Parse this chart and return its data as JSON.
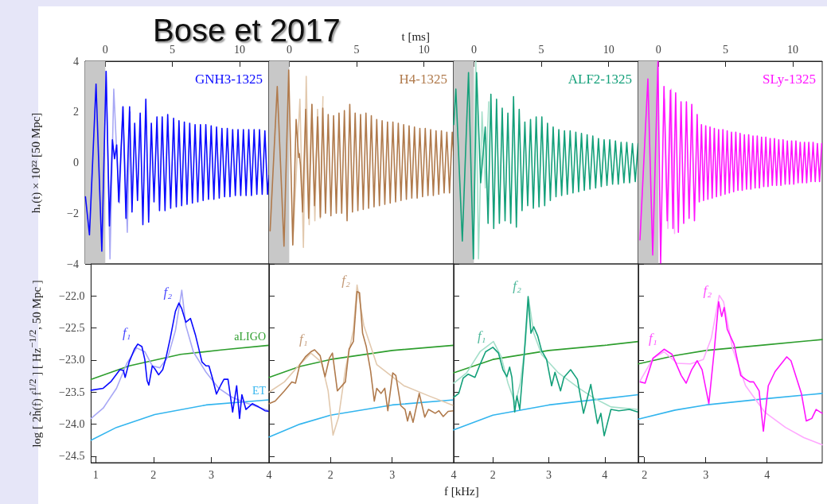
{
  "chart_data": [
    {
      "type": "line",
      "title": "Bose et 2017",
      "ylabel": "h₊(t) × 10²² [50 Mpc]",
      "marker": "none",
      "xlim": [
        -1.5,
        12.2
      ],
      "xticks": [
        0,
        5,
        10
      ],
      "ylim": [
        -4,
        4
      ],
      "yticks": [
        {
          "value": -4,
          "label": "−4"
        },
        {
          "value": -2,
          "label": "−2"
        },
        0,
        2,
        4
      ],
      "bands": [
        {
          "axis": "x",
          "from": -1.5,
          "to": 0,
          "color": "#c8c8c8"
        }
      ],
      "series": [
        {
          "color": "#a8a8f5",
          "x": [
            0.06,
            0.35,
            0.63,
            0.85,
            1.05,
            1.3,
            1.64,
            1.85
          ],
          "values": [
            3.6,
            -3.8,
            2.9,
            0.4,
            -1.6,
            2.2,
            -2.75,
            2.0
          ]
        },
        {
          "name": "GNH3-1325",
          "color": "#0a0aff",
          "x": [
            -1.48,
            -1.18,
            -0.69,
            -0.26,
            0.06,
            0.31,
            0.53,
            0.69,
            0.85,
            1.0,
            1.32,
            1.54,
            1.81,
            1.99,
            2.19,
            2.4,
            2.6,
            2.8,
            3.02,
            3.23,
            3.43,
            3.63,
            3.85,
            4.04,
            4.24,
            4.45,
            4.65,
            4.87,
            5.09,
            5.29,
            5.49,
            5.69,
            5.89,
            6.09,
            6.29,
            6.49,
            6.69,
            6.89,
            7.09,
            7.29,
            7.49,
            7.69,
            7.89,
            8.09,
            8.29,
            8.49,
            8.69,
            8.89,
            9.09,
            9.29,
            9.49,
            9.69,
            9.89,
            10.09,
            10.29,
            10.49,
            10.69,
            10.89,
            11.09,
            11.29,
            11.49,
            11.69,
            11.89,
            12.09,
            12.2
          ],
          "values": [
            -1.35,
            -2.85,
            3.1,
            -3.5,
            3.6,
            -2.5,
            0.9,
            0.15,
            0.7,
            -1.55,
            2.2,
            -2.2,
            2.2,
            -1.95,
            1.55,
            -1.5,
            1.95,
            -2.45,
            2.5,
            -2.35,
            1.55,
            -1.55,
            1.8,
            -1.9,
            1.8,
            -1.9,
            1.9,
            -1.8,
            1.75,
            -1.75,
            1.65,
            -1.7,
            1.6,
            -1.65,
            1.55,
            -1.6,
            1.5,
            -1.55,
            1.5,
            -1.5,
            1.5,
            -1.45,
            1.45,
            -1.45,
            1.4,
            -1.4,
            1.35,
            -1.35,
            1.35,
            -1.35,
            1.3,
            -1.3,
            1.3,
            -1.3,
            1.3,
            -1.3,
            1.3,
            -1.3,
            1.3,
            -1.25,
            1.3,
            -1.25,
            1.25,
            -1.25,
            -0.5
          ]
        }
      ]
    },
    {
      "type": "line",
      "xlabel": "t [ms]",
      "marker": "none",
      "tick_labels": "x",
      "xlim": [
        -1.5,
        12.2
      ],
      "xticks": [
        0,
        5,
        10
      ],
      "ylim": [
        -4,
        4
      ],
      "yticks": [
        -4,
        -2,
        0,
        2,
        4
      ],
      "bands": [
        {
          "axis": "x",
          "from": -1.5,
          "to": 0,
          "color": "#c8c8c8"
        }
      ],
      "series": [
        {
          "color": "#e2c9ae",
          "x": [
            0.26,
            0.79,
            1.05,
            1.26,
            1.48,
            1.68,
            1.9,
            2.1,
            2.3,
            2.5
          ],
          "values": [
            -3.25,
            2.5,
            -3.35,
            3.4,
            -2.45,
            2.3,
            -2.3,
            2.1,
            -2.2,
            2.6
          ]
        },
        {
          "name": "H4-1325",
          "color": "#b07a4c",
          "x": [
            -1.42,
            -0.89,
            -0.39,
            -0.04,
            0.26,
            0.51,
            0.7,
            0.75,
            0.83,
            0.99,
            1.22,
            1.44,
            1.68,
            1.87,
            2.11,
            2.31,
            2.49,
            2.69,
            2.89,
            3.09,
            3.29,
            3.49,
            3.69,
            3.89,
            4.09,
            4.29,
            4.49,
            4.69,
            4.89,
            5.09,
            5.29,
            5.49,
            5.69,
            5.89,
            6.09,
            6.29,
            6.49,
            6.69,
            6.89,
            7.09,
            7.29,
            7.49,
            7.69,
            7.89,
            8.09,
            8.29,
            8.49,
            8.69,
            8.89,
            9.09,
            9.29,
            9.49,
            9.69,
            9.89,
            10.09,
            10.29,
            10.49,
            10.69,
            10.89,
            11.09,
            11.29,
            11.49,
            11.69,
            11.89,
            12.09,
            12.2
          ],
          "values": [
            -2.7,
            3.0,
            -3.3,
            3.65,
            -3.25,
            1.7,
            0.2,
            0.35,
            -0.1,
            -1.95,
            2.1,
            -2.2,
            2.3,
            -1.7,
            1.8,
            -2.15,
            2.15,
            -2.0,
            1.9,
            -2.1,
            1.85,
            -2.0,
            1.95,
            -2.0,
            2.05,
            -2.3,
            2.3,
            -1.95,
            1.95,
            -1.9,
            1.9,
            -1.85,
            1.95,
            -1.8,
            1.85,
            -1.75,
            1.7,
            -1.7,
            1.65,
            -1.65,
            1.6,
            -1.6,
            1.6,
            -1.55,
            1.55,
            -1.5,
            1.5,
            -1.45,
            1.45,
            -1.4,
            1.4,
            -1.4,
            1.35,
            -1.35,
            1.35,
            -1.3,
            1.3,
            -1.3,
            1.25,
            -1.25,
            1.25,
            -1.2,
            1.2,
            -1.2,
            1.2,
            0.3
          ]
        }
      ]
    },
    {
      "type": "line",
      "marker": "none",
      "tick_labels": "x",
      "xlim": [
        -1.5,
        12.2
      ],
      "xticks": [
        0,
        5,
        10
      ],
      "ylim": [
        -4,
        4
      ],
      "yticks": [
        -4,
        -2,
        0,
        2,
        4
      ],
      "bands": [
        {
          "axis": "x",
          "from": -1.5,
          "to": 0,
          "color": "#c8c8c8"
        }
      ],
      "series": [
        {
          "color": "#a5dfca",
          "x": [
            -0.04,
            0.14,
            0.34,
            0.6,
            0.85,
            1.1
          ],
          "values": [
            -3.8,
            4.0,
            -3.8,
            2.0,
            -1.0,
            2.4
          ]
        },
        {
          "name": "ALF2-1325",
          "color": "#14a07a",
          "x": [
            -1.5,
            -1.34,
            -0.86,
            -0.4,
            -0.04,
            0.2,
            0.5,
            0.84,
            1.05,
            1.26,
            1.47,
            1.68,
            1.89,
            2.1,
            2.31,
            2.52,
            2.73,
            2.94,
            3.15,
            3.36,
            3.57,
            3.78,
            3.99,
            4.2,
            4.41,
            4.62,
            4.83,
            5.04,
            5.25,
            5.46,
            5.67,
            5.88,
            6.09,
            6.3,
            6.51,
            6.72,
            6.93,
            7.14,
            7.35,
            7.56,
            7.77,
            7.98,
            8.19,
            8.4,
            8.61,
            8.82,
            9.03,
            9.24,
            9.45,
            9.66,
            9.87,
            10.08,
            10.29,
            10.5,
            10.71,
            10.92,
            11.13,
            11.34,
            11.55,
            11.76,
            11.97,
            12.18
          ],
          "values": [
            1.5,
            2.9,
            -3.1,
            3.55,
            -3.8,
            3.55,
            -0.8,
            1.4,
            -2.4,
            2.7,
            -2.6,
            2.5,
            -2.4,
            2.15,
            -2.3,
            1.95,
            -2.4,
            2.6,
            -2.55,
            2.1,
            -1.9,
            1.6,
            -1.7,
            1.7,
            -1.8,
            1.8,
            -1.75,
            1.8,
            -1.7,
            1.55,
            -1.5,
            1.4,
            -1.35,
            1.3,
            -1.3,
            1.25,
            -1.25,
            1.25,
            -1.2,
            1.2,
            -1.15,
            1.15,
            -1.1,
            1.1,
            -1.05,
            1.05,
            -1.0,
            0.95,
            -0.95,
            0.9,
            -0.9,
            0.9,
            -0.85,
            0.85,
            -0.85,
            0.8,
            -0.8,
            0.8,
            -0.8,
            0.75,
            -0.75,
            0.75
          ]
        }
      ]
    },
    {
      "type": "line",
      "marker": "none",
      "tick_labels": "x",
      "xlim": [
        -1.5,
        12.2
      ],
      "xticks": [
        0,
        5,
        10
      ],
      "ylim": [
        -4,
        4
      ],
      "yticks": [
        -4,
        -2,
        0,
        2,
        4
      ],
      "bands": [
        {
          "axis": "x",
          "from": -1.5,
          "to": 0,
          "color": "#c8c8c8"
        }
      ],
      "series": [
        {
          "color": "#ffa8ff",
          "x": [
            0.45,
            0.7,
            0.95,
            1.2
          ],
          "values": [
            2.5,
            -2.6,
            2.9,
            -2.8
          ]
        },
        {
          "name": "SLy-1325",
          "color": "#ff14ff",
          "x": [
            -1.38,
            -0.79,
            -0.43,
            -0.04,
            0.16,
            0.41,
            0.65,
            0.89,
            1.08,
            1.28,
            1.48,
            1.68,
            1.88,
            2.08,
            2.28,
            2.48,
            2.68,
            2.88,
            3.04,
            3.2,
            3.36,
            3.52,
            3.68,
            3.84,
            4.0,
            4.16,
            4.32,
            4.48,
            4.64,
            4.8,
            4.96,
            5.12,
            5.28,
            5.44,
            5.6,
            5.76,
            5.92,
            6.08,
            6.24,
            6.4,
            6.56,
            6.72,
            6.88,
            7.04,
            7.2,
            7.36,
            7.52,
            7.68,
            7.84,
            8.0,
            8.16,
            8.32,
            8.48,
            8.64,
            8.8,
            8.96,
            9.12,
            9.28,
            9.44,
            9.6,
            9.76,
            9.92,
            10.08,
            10.24,
            10.4,
            10.56,
            10.72,
            10.88,
            11.04,
            11.2,
            11.36,
            11.52,
            11.68,
            11.84,
            12.0,
            12.16
          ],
          "values": [
            -3.05,
            3.3,
            -3.65,
            4.0,
            -4.0,
            3.0,
            -2.3,
            2.85,
            -2.6,
            2.75,
            -2.75,
            2.4,
            -2.4,
            2.4,
            -2.2,
            2.3,
            -2.3,
            1.9,
            -1.55,
            1.5,
            -1.5,
            1.45,
            -1.45,
            1.4,
            -1.4,
            1.35,
            -1.35,
            1.3,
            -1.3,
            1.3,
            -1.25,
            1.25,
            -1.2,
            1.2,
            -1.15,
            1.2,
            -1.1,
            1.15,
            -1.1,
            1.1,
            -1.05,
            1.1,
            -1.05,
            1.05,
            -1.0,
            1.05,
            -1.0,
            1.0,
            -0.95,
            1.0,
            -0.95,
            0.95,
            -0.9,
            0.95,
            -0.9,
            0.9,
            -0.9,
            0.9,
            -0.85,
            0.85,
            -0.85,
            0.85,
            -0.85,
            0.85,
            -0.8,
            0.8,
            -0.8,
            0.8,
            -0.8,
            0.8,
            -0.75,
            0.8,
            -0.75,
            0.75,
            -0.75,
            0.75
          ]
        }
      ]
    },
    {
      "type": "line",
      "ylabel": "log [ 2h̃(f) f$^{1/2}$ ] [ Hz$^{−1/2}$, 50 Mpc ]",
      "marker": "none",
      "xlim": [
        0.92,
        4.0
      ],
      "xticks": [
        1,
        2,
        3,
        4
      ],
      "ylim": [
        -24.6,
        -21.5
      ],
      "yticks": [
        {
          "value": -22,
          "label": "−22.0"
        },
        {
          "value": -22.5,
          "label": "−22.5"
        },
        {
          "value": -23,
          "label": "−23.0"
        },
        {
          "value": -23.5,
          "label": "−23.5"
        },
        {
          "value": -24,
          "label": "−24.0"
        },
        {
          "value": -24.5,
          "label": "−24.5"
        }
      ],
      "annotations": [
        {
          "text": "f₁",
          "x": 1.73,
          "y": -22.75
        },
        {
          "text": "f₂",
          "x": 2.44,
          "y": -22.11
        }
      ],
      "series": [
        {
          "name": "aLIGO",
          "color": "#2e9e2e",
          "x": [
            0.92,
            1.58,
            2.47,
            3.2,
            4.0
          ],
          "values": [
            -23.3,
            -23.09,
            -22.91,
            -22.84,
            -22.77
          ]
        },
        {
          "name": "ET",
          "color": "#33b5ee",
          "x": [
            0.92,
            1.36,
            2.02,
            2.91,
            4.0
          ],
          "values": [
            -24.25,
            -24.05,
            -23.85,
            -23.7,
            -23.62
          ]
        },
        {
          "color": "#a8a8f5",
          "x": [
            0.92,
            1.13,
            1.36,
            1.54,
            1.71,
            1.85,
            1.98,
            2.11,
            2.25,
            2.38,
            2.49,
            2.56,
            2.69,
            2.91,
            3.13,
            3.36,
            3.58,
            4.0
          ],
          "values": [
            -23.91,
            -23.75,
            -23.44,
            -23.05,
            -22.81,
            -22.87,
            -23.09,
            -23.12,
            -22.95,
            -22.54,
            -21.91,
            -22.46,
            -22.87,
            -23.19,
            -23.44,
            -23.58,
            -23.66,
            -23.79
          ]
        },
        {
          "color": "#0a0aff",
          "x": [
            0.92,
            1.13,
            1.27,
            1.42,
            1.48,
            1.51,
            1.58,
            1.67,
            1.73,
            1.8,
            1.85,
            1.89,
            1.92,
            1.98,
            2.02,
            2.09,
            2.16,
            2.22,
            2.29,
            2.38,
            2.44,
            2.49,
            2.56,
            2.64,
            2.73,
            2.84,
            2.91,
            2.96,
            3.02,
            3.09,
            3.16,
            3.22,
            3.29,
            3.37,
            3.44,
            3.49,
            3.53,
            3.6,
            3.71,
            3.82,
            3.93,
            4.0
          ],
          "values": [
            -23.47,
            -23.44,
            -23.33,
            -23.15,
            -23.16,
            -23.27,
            -23.03,
            -22.83,
            -22.75,
            -22.79,
            -22.99,
            -23.32,
            -23.39,
            -23.09,
            -23.13,
            -23.23,
            -23.15,
            -22.95,
            -22.66,
            -22.24,
            -22.11,
            -22.2,
            -22.41,
            -22.35,
            -22.62,
            -23.03,
            -23.09,
            -23.09,
            -23.28,
            -23.53,
            -23.4,
            -23.3,
            -23.3,
            -23.81,
            -23.4,
            -23.91,
            -23.54,
            -23.77,
            -23.68,
            -23.73,
            -23.79,
            -23.8
          ]
        }
      ]
    },
    {
      "type": "line",
      "xlabel": "f [kHz]",
      "marker": "none",
      "tick_labels": "x",
      "xlim": [
        1.0,
        4.0
      ],
      "xticks": [
        2,
        3,
        4
      ],
      "ylim": [
        -24.6,
        -21.5
      ],
      "yticks": [
        -22,
        -22.5,
        -23,
        -23.5,
        -24,
        -24.5
      ],
      "annotations": [
        {
          "text": "f₁",
          "x": 1.74,
          "y": -22.84
        },
        {
          "text": "f₂",
          "x": 2.43,
          "y": -21.93
        }
      ],
      "series": [
        {
          "color": "#2e9e2e",
          "x": [
            1.0,
            1.5,
            2.0,
            3.0,
            4.0
          ],
          "values": [
            -23.27,
            -23.1,
            -22.99,
            -22.85,
            -22.77
          ]
        },
        {
          "color": "#33b5ee",
          "x": [
            1.0,
            1.5,
            2.0,
            3.0,
            4.0
          ],
          "values": [
            -24.2,
            -24.0,
            -23.86,
            -23.7,
            -23.62
          ]
        },
        {
          "color": "#e2c9ae",
          "x": [
            1.0,
            1.25,
            1.46,
            1.68,
            1.85,
            1.96,
            2.04,
            2.13,
            2.24,
            2.37,
            2.43,
            2.54,
            2.75,
            3.19,
            3.6,
            4.0
          ],
          "values": [
            -23.5,
            -23.34,
            -23.11,
            -22.89,
            -23.03,
            -23.48,
            -24.17,
            -23.89,
            -23.15,
            -22.53,
            -21.83,
            -22.46,
            -23.07,
            -23.4,
            -23.56,
            -23.71
          ]
        },
        {
          "color": "#b07a4c",
          "x": [
            1.0,
            1.1,
            1.25,
            1.37,
            1.43,
            1.5,
            1.59,
            1.68,
            1.74,
            1.83,
            1.91,
            1.98,
            2.03,
            2.06,
            2.11,
            2.24,
            2.3,
            2.37,
            2.43,
            2.47,
            2.52,
            2.58,
            2.65,
            2.71,
            2.75,
            2.82,
            2.88,
            2.93,
            3.01,
            3.06,
            3.14,
            3.21,
            3.25,
            3.29,
            3.34,
            3.44,
            3.53,
            3.59,
            3.7,
            3.76,
            3.83,
            3.91,
            4.0
          ],
          "values": [
            -23.68,
            -23.64,
            -23.48,
            -23.34,
            -23.36,
            -23.07,
            -22.95,
            -22.87,
            -22.84,
            -22.93,
            -23.26,
            -22.97,
            -22.89,
            -23.11,
            -23.48,
            -23.34,
            -22.83,
            -22.71,
            -21.93,
            -21.95,
            -22.58,
            -22.79,
            -23.17,
            -23.64,
            -23.44,
            -23.52,
            -23.44,
            -23.79,
            -23.2,
            -23.24,
            -23.71,
            -23.77,
            -23.95,
            -23.8,
            -23.97,
            -23.52,
            -23.89,
            -23.77,
            -23.83,
            -23.79,
            -23.88,
            -23.8,
            -23.79
          ]
        }
      ]
    },
    {
      "type": "line",
      "marker": "none",
      "tick_labels": "x",
      "xlim": [
        1.3,
        4.6
      ],
      "xticks": [
        2,
        3,
        4
      ],
      "ylim": [
        -24.6,
        -21.5
      ],
      "yticks": [
        -22,
        -22.5,
        -23,
        -23.5,
        -24,
        -24.5
      ],
      "annotations": [
        {
          "text": "f₁",
          "x": 2.0,
          "y": -22.8
        },
        {
          "text": "f₂",
          "x": 2.63,
          "y": -22.01
        }
      ],
      "series": [
        {
          "color": "#2e9e2e",
          "x": [
            1.3,
            2.0,
            3.0,
            4.0,
            4.6
          ],
          "values": [
            -23.2,
            -22.99,
            -22.85,
            -22.77,
            -22.71
          ]
        },
        {
          "color": "#33b5ee",
          "x": [
            1.3,
            2.0,
            3.0,
            4.0,
            4.6
          ],
          "values": [
            -24.09,
            -23.86,
            -23.7,
            -23.6,
            -23.54
          ]
        },
        {
          "color": "#a5dfca",
          "x": [
            1.3,
            1.53,
            1.77,
            2.01,
            2.15,
            2.27,
            2.4,
            2.49,
            2.58,
            2.64,
            2.73,
            2.87,
            3.16,
            3.54,
            3.82,
            4.11,
            4.59
          ],
          "values": [
            -23.36,
            -23.2,
            -22.87,
            -22.71,
            -22.95,
            -23.36,
            -23.68,
            -23.36,
            -22.75,
            -22.05,
            -22.58,
            -22.91,
            -23.19,
            -23.44,
            -23.6,
            -23.73,
            -23.77
          ]
        },
        {
          "color": "#14a07a",
          "x": [
            1.3,
            1.39,
            1.47,
            1.56,
            1.68,
            1.77,
            1.87,
            2.0,
            2.1,
            2.18,
            2.25,
            2.3,
            2.34,
            2.39,
            2.43,
            2.48,
            2.56,
            2.63,
            2.68,
            2.73,
            2.8,
            2.87,
            2.96,
            3.05,
            3.11,
            3.21,
            3.27,
            3.39,
            3.51,
            3.62,
            3.75,
            3.87,
            3.93,
            3.99,
            4.11,
            4.25,
            4.44,
            4.59
          ],
          "values": [
            -23.58,
            -23.52,
            -23.28,
            -23.22,
            -23.27,
            -23.07,
            -22.87,
            -22.8,
            -22.89,
            -23.15,
            -23.26,
            -23.11,
            -23.27,
            -23.81,
            -23.56,
            -23.77,
            -22.92,
            -22.01,
            -22.58,
            -22.48,
            -22.62,
            -22.85,
            -22.99,
            -23.4,
            -23.19,
            -23.48,
            -23.27,
            -23.15,
            -23.3,
            -23.83,
            -23.38,
            -23.99,
            -23.83,
            -24.18,
            -23.77,
            -23.79,
            -23.77,
            -23.81
          ]
        }
      ]
    },
    {
      "type": "line",
      "marker": "none",
      "tick_labels": "x",
      "xlim": [
        1.9,
        4.9
      ],
      "xticks": [
        2,
        3,
        4
      ],
      "ylim": [
        -24.6,
        -21.5
      ],
      "yticks": [
        -22,
        -22.5,
        -23,
        -23.5,
        -24,
        -24.5
      ],
      "annotations": [
        {
          "text": "f₁",
          "x": 2.32,
          "y": -22.83
        },
        {
          "text": "f₂",
          "x": 3.21,
          "y": -22.09
        }
      ],
      "series": [
        {
          "color": "#2e9e2e",
          "x": [
            1.9,
            2.5,
            3.0,
            4.0,
            4.9
          ],
          "values": [
            -23.06,
            -22.93,
            -22.85,
            -22.76,
            -22.68
          ]
        },
        {
          "color": "#33b5ee",
          "x": [
            1.9,
            2.5,
            3.0,
            4.0,
            4.9
          ],
          "values": [
            -23.92,
            -23.78,
            -23.7,
            -23.6,
            -23.52
          ]
        },
        {
          "color": "#ffa8ff",
          "x": [
            1.93,
            2.14,
            2.32,
            2.53,
            2.75,
            2.96,
            3.09,
            3.22,
            3.29,
            3.44,
            3.65,
            3.96,
            4.3,
            4.6,
            4.9
          ],
          "values": [
            -23.32,
            -22.97,
            -22.87,
            -23.05,
            -23.06,
            -22.99,
            -22.66,
            -21.99,
            -22.09,
            -22.83,
            -23.4,
            -23.81,
            -24.05,
            -24.21,
            -24.32
          ]
        },
        {
          "color": "#ff14ff",
          "x": [
            1.93,
            2.01,
            2.14,
            2.32,
            2.45,
            2.6,
            2.68,
            2.77,
            2.86,
            2.94,
            3.05,
            3.14,
            3.21,
            3.26,
            3.3,
            3.35,
            3.46,
            3.57,
            3.65,
            3.72,
            3.78,
            3.87,
            3.94,
            4.02,
            4.13,
            4.32,
            4.39,
            4.56,
            4.64,
            4.73,
            4.8,
            4.9
          ],
          "values": [
            -23.34,
            -23.36,
            -22.97,
            -22.83,
            -22.91,
            -23.24,
            -23.36,
            -23.15,
            -23.01,
            -23.15,
            -23.68,
            -22.83,
            -22.09,
            -22.32,
            -22.18,
            -22.52,
            -22.75,
            -23.24,
            -23.3,
            -23.34,
            -23.34,
            -23.48,
            -24.11,
            -23.4,
            -23.18,
            -22.95,
            -23.01,
            -23.52,
            -23.95,
            -23.91,
            -23.77,
            -23.83
          ]
        }
      ]
    }
  ]
}
